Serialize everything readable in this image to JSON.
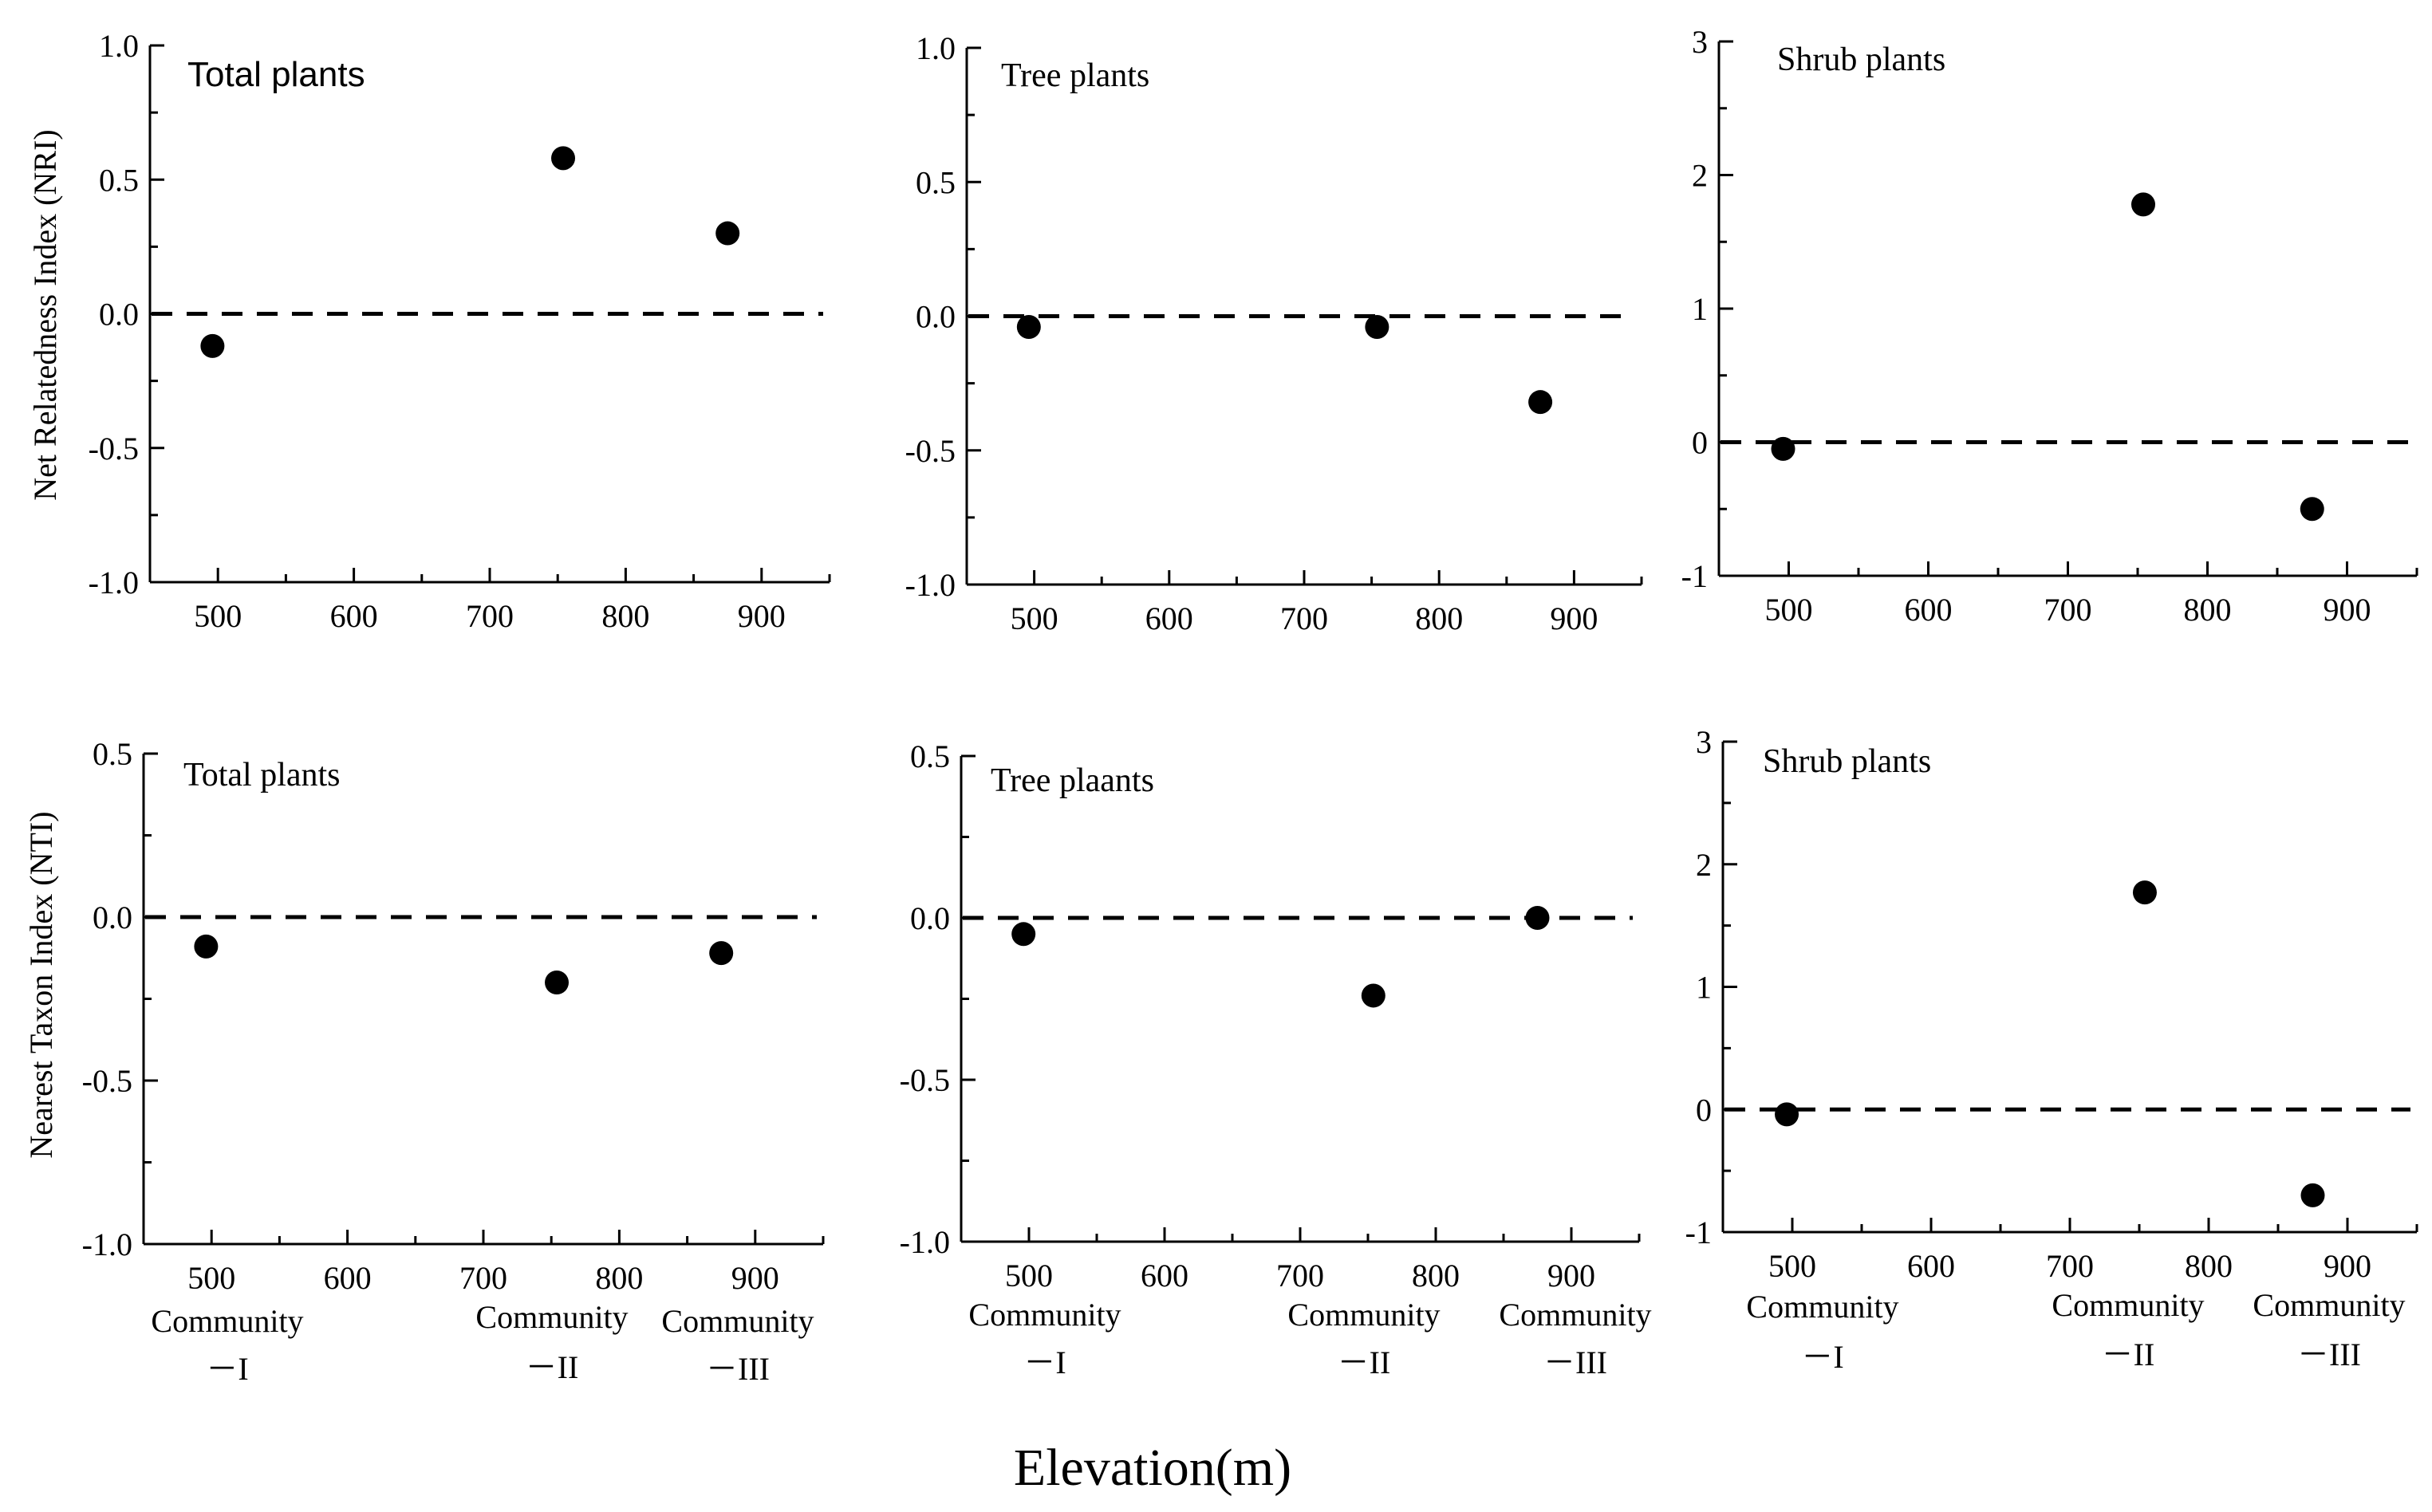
{
  "figure": {
    "xlabel": "Elevation(m)",
    "row_ylabels": [
      "Net Relatedness Index (NRI)",
      "Nearest Taxon Index (NTI)"
    ],
    "community_labels": [
      {
        "name": "Community",
        "numeral": "－I"
      },
      {
        "name": "Community",
        "numeral": "－II"
      },
      {
        "name": "Community",
        "numeral": "－III"
      }
    ]
  },
  "chart_data": [
    {
      "type": "scatter",
      "panel": "top-left",
      "title": "Total plants",
      "ylabel": "Net Relatedness Index (NRI)",
      "xlim": [
        450,
        950
      ],
      "xticks": [
        500,
        600,
        700,
        800,
        900
      ],
      "ylim": [
        -1.0,
        1.0
      ],
      "yticks": [
        -1.0,
        -0.5,
        0.0,
        0.5,
        1.0
      ],
      "ytick_labels": [
        "-1.0",
        "-0.5",
        "0.0",
        "0.5",
        "1.0"
      ],
      "reference_line": 0,
      "points": [
        {
          "x": 496,
          "y": -0.12
        },
        {
          "x": 754,
          "y": 0.58
        },
        {
          "x": 875,
          "y": 0.3
        }
      ]
    },
    {
      "type": "scatter",
      "panel": "top-middle",
      "title": "Tree plants",
      "xlim": [
        450,
        950
      ],
      "xticks": [
        500,
        600,
        700,
        800,
        900
      ],
      "ylim": [
        -1.0,
        1.0
      ],
      "yticks": [
        -1.0,
        -0.5,
        0.0,
        0.5,
        1.0
      ],
      "ytick_labels": [
        "-1.0",
        "-0.5",
        "0.0",
        "0.5",
        "1.0"
      ],
      "reference_line": 0,
      "points": [
        {
          "x": 496,
          "y": -0.04
        },
        {
          "x": 754,
          "y": -0.04
        },
        {
          "x": 875,
          "y": -0.32
        }
      ]
    },
    {
      "type": "scatter",
      "panel": "top-right",
      "title": "Shrub plants",
      "xlim": [
        450,
        950
      ],
      "xticks": [
        500,
        600,
        700,
        800,
        900
      ],
      "ylim": [
        -1,
        3
      ],
      "yticks": [
        -1,
        0,
        1,
        2,
        3
      ],
      "ytick_labels": [
        "-1",
        "0",
        "1",
        "2",
        "3"
      ],
      "reference_line": 0,
      "points": [
        {
          "x": 496,
          "y": -0.05
        },
        {
          "x": 754,
          "y": 1.78
        },
        {
          "x": 875,
          "y": -0.5
        }
      ]
    },
    {
      "type": "scatter",
      "panel": "bottom-left",
      "title": "Total plants",
      "ylabel": "Nearest Taxon Index (NTI)",
      "xlim": [
        450,
        950
      ],
      "xticks": [
        500,
        600,
        700,
        800,
        900
      ],
      "ylim": [
        -1.0,
        0.5
      ],
      "yticks": [
        -1.0,
        -0.5,
        0.0,
        0.5
      ],
      "ytick_labels": [
        "-1.0",
        "-0.5",
        "0.0",
        "0.5"
      ],
      "reference_line": 0,
      "points": [
        {
          "x": 496,
          "y": -0.09
        },
        {
          "x": 754,
          "y": -0.2
        },
        {
          "x": 875,
          "y": -0.11
        }
      ]
    },
    {
      "type": "scatter",
      "panel": "bottom-middle",
      "title": "Tree plaants",
      "xlim": [
        450,
        950
      ],
      "xticks": [
        500,
        600,
        700,
        800,
        900
      ],
      "ylim": [
        -1.0,
        0.5
      ],
      "yticks": [
        -1.0,
        -0.5,
        0.0,
        0.5
      ],
      "ytick_labels": [
        "-1.0",
        "-0.5",
        "0.0",
        "0.5"
      ],
      "reference_line": 0,
      "points": [
        {
          "x": 496,
          "y": -0.05
        },
        {
          "x": 754,
          "y": -0.24
        },
        {
          "x": 875,
          "y": 0.0
        }
      ]
    },
    {
      "type": "scatter",
      "panel": "bottom-right",
      "title": "Shrub plants",
      "xlim": [
        450,
        950
      ],
      "xticks": [
        500,
        600,
        700,
        800,
        900
      ],
      "ylim": [
        -1,
        3
      ],
      "yticks": [
        -1,
        0,
        1,
        2,
        3
      ],
      "ytick_labels": [
        "-1",
        "0",
        "1",
        "2",
        "3"
      ],
      "reference_line": 0,
      "points": [
        {
          "x": 496,
          "y": -0.04
        },
        {
          "x": 754,
          "y": 1.77
        },
        {
          "x": 875,
          "y": -0.7
        }
      ]
    }
  ]
}
